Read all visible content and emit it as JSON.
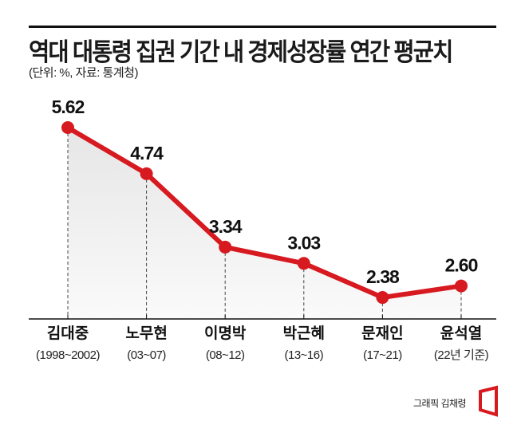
{
  "chart_data": {
    "type": "line",
    "title": "역대 대통령 집권 기간 내 경제성장률 연간 평균치",
    "subtitle": "(단위: %, 자료: 통계청)",
    "categories": [
      "김대중",
      "노무현",
      "이명박",
      "박근혜",
      "문재인",
      "윤석열"
    ],
    "periods": [
      "(1998~2002)",
      "(03~07)",
      "(08~12)",
      "(13~16)",
      "(17~21)",
      "(22년 기준)"
    ],
    "values": [
      5.62,
      4.74,
      3.34,
      3.03,
      2.38,
      2.6
    ],
    "labels": [
      "5.62",
      "4.74",
      "3.34",
      "3.03",
      "2.38",
      "2.60"
    ],
    "xlabel": "",
    "ylabel": "",
    "ylim": [
      1.97,
      5.62
    ],
    "grid": false,
    "line_color": "#d71920"
  },
  "credit": "그래픽 김채령",
  "logo_color": "#d71920"
}
